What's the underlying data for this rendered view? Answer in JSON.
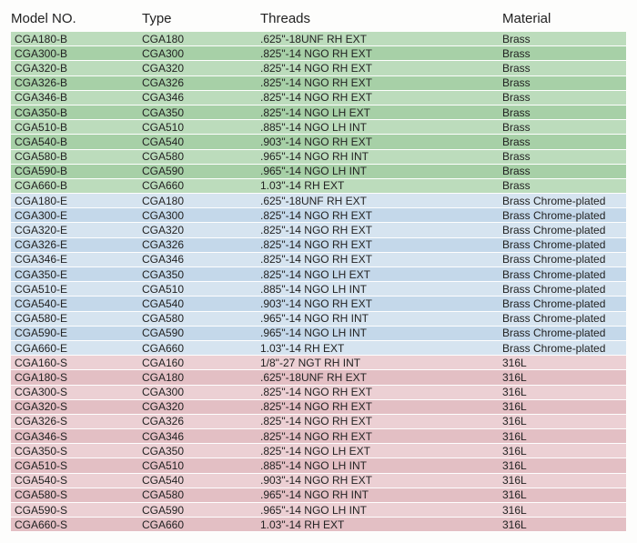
{
  "columns": [
    "Model NO.",
    "Type",
    "Threads",
    "Material"
  ],
  "groups": [
    {
      "bg_light": "#bcdcbc",
      "bg_dark": "#a7d0a7",
      "rows": [
        [
          "CGA180-B",
          "CGA180",
          ".625\"-18UNF RH EXT",
          "Brass"
        ],
        [
          "CGA300-B",
          "CGA300",
          ".825\"-14 NGO RH EXT",
          "Brass"
        ],
        [
          "CGA320-B",
          "CGA320",
          ".825\"-14 NGO RH EXT",
          "Brass"
        ],
        [
          "CGA326-B",
          "CGA326",
          ".825\"-14 NGO RH EXT",
          "Brass"
        ],
        [
          "CGA346-B",
          "CGA346",
          ".825\"-14 NGO  RH EXT",
          "Brass"
        ],
        [
          "CGA350-B",
          "CGA350",
          ".825\"-14 NGO LH EXT",
          "Brass"
        ],
        [
          "CGA510-B",
          "CGA510",
          ".885\"-14 NGO LH INT",
          "Brass"
        ],
        [
          "CGA540-B",
          "CGA540",
          ".903\"-14 NGO RH EXT",
          "Brass"
        ],
        [
          "CGA580-B",
          "CGA580",
          ".965\"-14 NGO RH INT",
          "Brass"
        ],
        [
          "CGA590-B",
          "CGA590",
          ".965\"-14 NGO LH INT",
          "Brass"
        ],
        [
          "CGA660-B",
          "CGA660",
          "1.03\"-14 RH EXT",
          "Brass"
        ]
      ]
    },
    {
      "bg_light": "#d6e4f0",
      "bg_dark": "#c4d8ea",
      "rows": [
        [
          "CGA180-E",
          "CGA180",
          ".625\"-18UNF RH EXT",
          "Brass Chrome-plated"
        ],
        [
          "CGA300-E",
          "CGA300",
          ".825\"-14 NGO RH EXT",
          "Brass Chrome-plated"
        ],
        [
          "CGA320-E",
          "CGA320",
          ".825\"-14 NGO RH EXT",
          "Brass Chrome-plated"
        ],
        [
          "CGA326-E",
          "CGA326",
          ".825\"-14 NGO RH EXT",
          "Brass Chrome-plated"
        ],
        [
          "CGA346-E",
          "CGA346",
          ".825\"-14 NGO  RH EXT",
          "Brass Chrome-plated"
        ],
        [
          "CGA350-E",
          "CGA350",
          ".825\"-14 NGO LH EXT",
          "Brass Chrome-plated"
        ],
        [
          "CGA510-E",
          "CGA510",
          ".885\"-14 NGO LH INT",
          "Brass Chrome-plated"
        ],
        [
          "CGA540-E",
          "CGA540",
          ".903\"-14 NGO RH EXT",
          "Brass Chrome-plated"
        ],
        [
          "CGA580-E",
          "CGA580",
          ".965\"-14 NGO RH INT",
          "Brass Chrome-plated"
        ],
        [
          "CGA590-E",
          "CGA590",
          ".965\"-14 NGO LH INT",
          "Brass Chrome-plated"
        ],
        [
          "CGA660-E",
          "CGA660",
          "1.03\"-14 RH EXT",
          "Brass Chrome-plated"
        ]
      ]
    },
    {
      "bg_light": "#ecd0d4",
      "bg_dark": "#e3bfc4",
      "rows": [
        [
          "CGA160-S",
          "CGA160",
          "1/8\"-27 NGT RH INT",
          "316L"
        ],
        [
          "CGA180-S",
          "CGA180",
          ".625\"-18UNF RH EXT",
          "316L"
        ],
        [
          "CGA300-S",
          "CGA300",
          ".825\"-14 NGO RH EXT",
          "316L"
        ],
        [
          "CGA320-S",
          "CGA320",
          ".825\"-14 NGO RH EXT",
          "316L"
        ],
        [
          "CGA326-S",
          "CGA326",
          ".825\"-14 NGO RH EXT",
          "316L"
        ],
        [
          "CGA346-S",
          "CGA346",
          ".825\"-14 NGO  RH EXT",
          "316L"
        ],
        [
          "CGA350-S",
          "CGA350",
          ".825\"-14 NGO LH EXT",
          "316L"
        ],
        [
          "CGA510-S",
          "CGA510",
          ".885\"-14 NGO LH INT",
          "316L"
        ],
        [
          "CGA540-S",
          "CGA540",
          ".903\"-14 NGO RH EXT",
          "316L"
        ],
        [
          "CGA580-S",
          "CGA580",
          ".965\"-14 NGO RH INT",
          "316L"
        ],
        [
          "CGA590-S",
          "CGA590",
          ".965\"-14 NGO LH INT",
          "316L"
        ],
        [
          "CGA660-S",
          "CGA660",
          "1.03\"-14 RH EXT",
          "316L"
        ]
      ]
    }
  ]
}
